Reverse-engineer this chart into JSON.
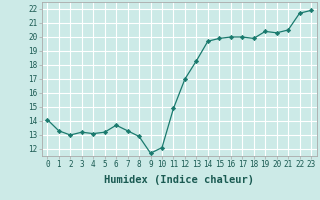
{
  "x": [
    0,
    1,
    2,
    3,
    4,
    5,
    6,
    7,
    8,
    9,
    10,
    11,
    12,
    13,
    14,
    15,
    16,
    17,
    18,
    19,
    20,
    21,
    22,
    23
  ],
  "y": [
    14.1,
    13.3,
    13.0,
    13.2,
    13.1,
    13.2,
    13.7,
    13.3,
    12.9,
    11.7,
    12.1,
    14.9,
    17.0,
    18.3,
    19.7,
    19.9,
    20.0,
    20.0,
    19.9,
    20.4,
    20.3,
    20.5,
    21.7,
    21.9
  ],
  "line_color": "#1a7a6e",
  "marker": "D",
  "marker_size": 2.2,
  "bg_color": "#cceae7",
  "grid_color": "#ffffff",
  "grid_minor_color": "#e0f4f2",
  "xlabel": "Humidex (Indice chaleur)",
  "ylim": [
    11.5,
    22.5
  ],
  "xlim": [
    -0.5,
    23.5
  ],
  "yticks": [
    12,
    13,
    14,
    15,
    16,
    17,
    18,
    19,
    20,
    21,
    22
  ],
  "xticks": [
    0,
    1,
    2,
    3,
    4,
    5,
    6,
    7,
    8,
    9,
    10,
    11,
    12,
    13,
    14,
    15,
    16,
    17,
    18,
    19,
    20,
    21,
    22,
    23
  ],
  "xlabel_fontsize": 7.5,
  "tick_fontsize": 5.5
}
